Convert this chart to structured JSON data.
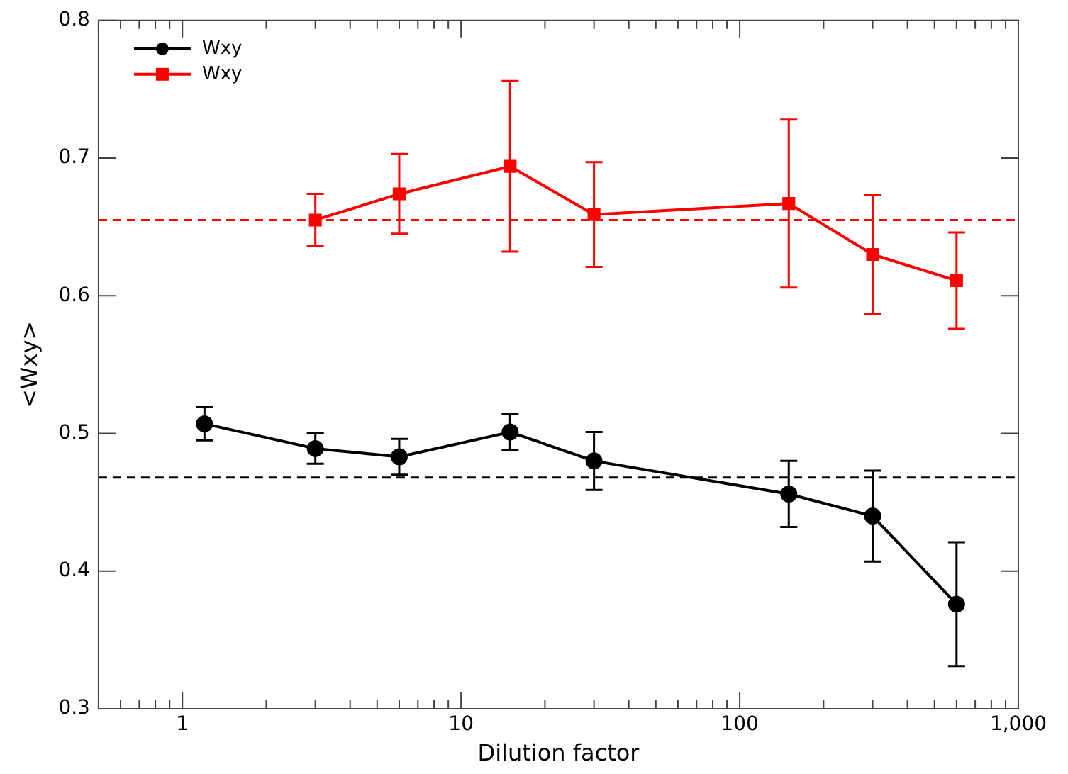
{
  "chart_data": {
    "type": "line",
    "xlabel": "Dilution factor",
    "ylabel": "<Wxy>",
    "log": "x",
    "xlim": [
      0.5,
      1000
    ],
    "xticks": [
      {
        "value": 0.5,
        "label": null
      },
      {
        "value": 0.6,
        "label": null
      },
      {
        "value": 0.7,
        "label": null
      },
      {
        "value": 0.8,
        "label": null
      },
      {
        "value": 0.9,
        "label": null
      },
      1,
      {
        "value": 2,
        "label": null
      },
      {
        "value": 3,
        "label": null
      },
      {
        "value": 4,
        "label": null
      },
      {
        "value": 5,
        "label": null
      },
      {
        "value": 6,
        "label": null
      },
      {
        "value": 7,
        "label": null
      },
      {
        "value": 8,
        "label": null
      },
      {
        "value": 9,
        "label": null
      },
      10,
      {
        "value": 20,
        "label": null
      },
      {
        "value": 30,
        "label": null
      },
      {
        "value": 40,
        "label": null
      },
      {
        "value": 50,
        "label": null
      },
      {
        "value": 60,
        "label": null
      },
      {
        "value": 70,
        "label": null
      },
      {
        "value": 80,
        "label": null
      },
      {
        "value": 90,
        "label": null
      },
      100,
      {
        "value": 200,
        "label": null
      },
      {
        "value": 300,
        "label": null
      },
      {
        "value": 400,
        "label": null
      },
      {
        "value": 500,
        "label": null
      },
      {
        "value": 600,
        "label": null
      },
      {
        "value": 700,
        "label": null
      },
      {
        "value": 800,
        "label": null
      },
      {
        "value": 900,
        "label": null
      },
      {
        "value": 1000,
        "label": "1,000"
      }
    ],
    "ylim": [
      0.3,
      0.8
    ],
    "yticks": [
      0.3,
      0.4,
      0.5,
      0.6,
      0.7,
      0.8
    ],
    "grid": false,
    "legend": "top left",
    "line_style": "solid",
    "series": [
      {
        "name": "Wxy",
        "color": "#000000",
        "marker": "circle",
        "x": [
          1.2,
          3,
          6,
          15,
          30,
          150,
          300,
          600
        ],
        "values": [
          0.507,
          0.489,
          0.483,
          0.501,
          0.48,
          0.456,
          0.44,
          0.376
        ],
        "errors": [
          0.012,
          0.011,
          0.013,
          0.013,
          0.021,
          0.024,
          0.033,
          0.045
        ]
      },
      {
        "name": "Wxy",
        "color": "#ff0000",
        "marker": "square",
        "x": [
          3,
          6,
          15,
          30,
          150,
          300,
          600
        ],
        "values": [
          0.655,
          0.674,
          0.694,
          0.659,
          0.667,
          0.63,
          0.611
        ],
        "errors": [
          0.019,
          0.029,
          0.062,
          0.038,
          0.061,
          0.043,
          0.035
        ]
      }
    ],
    "ref_lines": [
      {
        "axis": "y",
        "value": 0.468,
        "color": "#000000",
        "line_style": "dashed"
      },
      {
        "axis": "y",
        "value": 0.655,
        "color": "#ff0000",
        "line_style": "dashed"
      }
    ]
  }
}
